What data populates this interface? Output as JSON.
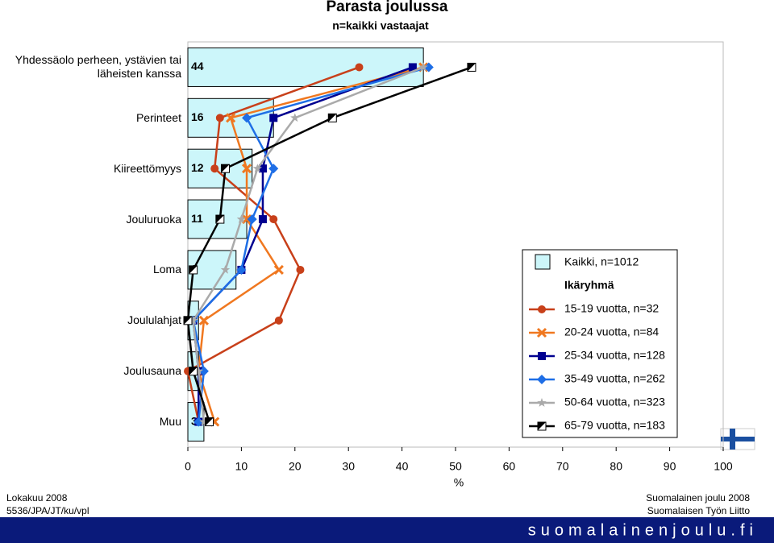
{
  "chart_data": {
    "type": "combo",
    "title": "Parasta joulussa",
    "subtitle": "n=kaikki vastaajat",
    "x_label": "%",
    "categories": [
      "Yhdessäolo perheen, ystävien tai läheisten kanssa",
      "Perinteet",
      "Kiireettömyys",
      "Jouluruoka",
      "Loma",
      "Joululahjat",
      "Joulusauna",
      "Muu"
    ],
    "bar_series": {
      "name": "Kaikki, n=1012",
      "color": "#ccf6fa",
      "values": [
        44,
        16,
        12,
        11,
        9,
        2,
        2,
        3
      ]
    },
    "legend_title": "Ikäryhmä",
    "series": [
      {
        "name": "15-19 vuotta, n=32",
        "color": "#c8401a",
        "marker": "circle",
        "values": [
          32,
          6,
          5,
          16,
          21,
          17,
          0,
          2
        ]
      },
      {
        "name": "20-24 vuotta, n=84",
        "color": "#f07820",
        "marker": "x",
        "values": [
          44,
          8,
          11,
          11,
          17,
          3,
          2,
          5
        ]
      },
      {
        "name": "25-34 vuotta, n=128",
        "color": "#000090",
        "marker": "square",
        "values": [
          42,
          16,
          14,
          14,
          10,
          1,
          2,
          2
        ]
      },
      {
        "name": "35-49 vuotta, n=262",
        "color": "#1e6ee6",
        "marker": "diamond",
        "values": [
          45,
          11,
          16,
          12,
          10,
          1,
          3,
          2
        ]
      },
      {
        "name": "50-64 vuotta, n=323",
        "color": "#aaaaaa",
        "marker": "star",
        "values": [
          44,
          20,
          13,
          10,
          7,
          1,
          2,
          3
        ]
      },
      {
        "name": "65-79 vuotta, n=183",
        "color": "#000000",
        "marker": "halfsquare",
        "values": [
          53,
          27,
          7,
          6,
          1,
          0,
          1,
          4
        ]
      }
    ],
    "xlim": [
      0,
      100
    ],
    "xticks": [
      0,
      10,
      20,
      30,
      40,
      50,
      60,
      70,
      80,
      90,
      100
    ],
    "grid": false
  },
  "footer": {
    "date": "Lokakuu 2008",
    "code": "5536/JPA/JT/ku/vpl",
    "source": "Suomalainen joulu 2008",
    "org": "Suomalaisen Työn Liitto",
    "site": "suomalainenjoulu.fi"
  }
}
